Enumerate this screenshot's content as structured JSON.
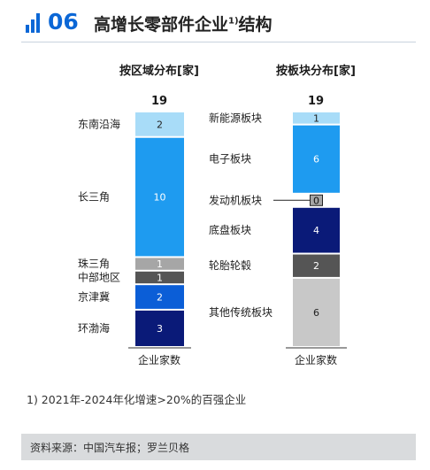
{
  "header": {
    "section_number": "06",
    "title": "高增长零部件企业",
    "title_sup": "1)",
    "title_suffix": "结构"
  },
  "chart_data": [
    {
      "type": "bar",
      "stacked": true,
      "title": "按区域分布[家]",
      "xlabel": "企业家数",
      "total": 19,
      "segments_bottom_to_top": [
        {
          "name": "环渤海",
          "value": 3,
          "color": "#0a1a78"
        },
        {
          "name": "京津冀",
          "value": 2,
          "color": "#0b5ed7"
        },
        {
          "name": "中部地区",
          "value": 1,
          "color": "#555555"
        },
        {
          "name": "珠三角",
          "value": 1,
          "color": "#a6a6a6"
        },
        {
          "name": "长三角",
          "value": 10,
          "color": "#1e9bf0"
        },
        {
          "name": "东南沿海",
          "value": 2,
          "color": "#a8dcf8"
        }
      ]
    },
    {
      "type": "bar",
      "stacked": true,
      "title": "按板块分布[家]",
      "xlabel": "企业家数",
      "total": 19,
      "segments_bottom_to_top": [
        {
          "name": "其他传统板块",
          "value": 6,
          "color": "#c8c8c8"
        },
        {
          "name": "轮胎轮毂",
          "value": 2,
          "color": "#555555"
        },
        {
          "name": "底盘板块",
          "value": 4,
          "color": "#0a1a78"
        },
        {
          "name": "发动机板块",
          "value": 0,
          "color": "#a6a6a6"
        },
        {
          "name": "电子板块",
          "value": 6,
          "color": "#1e9bf0"
        },
        {
          "name": "新能源板块",
          "value": 1,
          "color": "#a8dcf8"
        }
      ]
    }
  ],
  "footnote": "1) 2021年-2024年化增速>20%的百强企业",
  "source": "资料来源：中国汽车报；罗兰贝格"
}
